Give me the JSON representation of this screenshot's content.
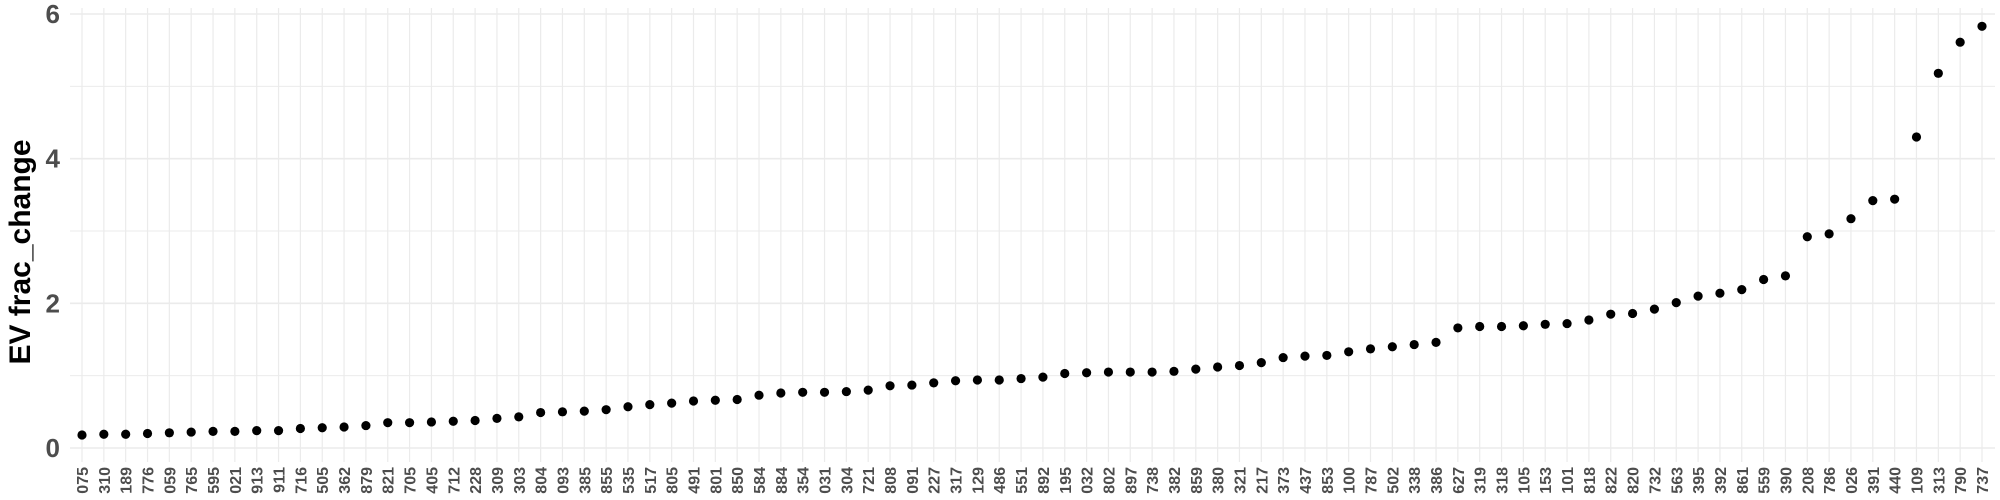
{
  "chart_data": {
    "type": "scatter",
    "title": "",
    "xlabel": "",
    "ylabel": "EV frac_change",
    "ylim": [
      0,
      6
    ],
    "yticks": [
      "0",
      "2",
      "4",
      "6"
    ],
    "grid": true,
    "legend": "none",
    "point_color": "#000000",
    "grid_color": "#ebebeb",
    "categories": [
      "075",
      "310",
      "189",
      "776",
      "059",
      "765",
      "595",
      "021",
      "913",
      "911",
      "716",
      "505",
      "362",
      "879",
      "821",
      "705",
      "405",
      "712",
      "228",
      "309",
      "303",
      "804",
      "093",
      "385",
      "855",
      "535",
      "517",
      "805",
      "491",
      "801",
      "850",
      "584",
      "884",
      "354",
      "031",
      "304",
      "721",
      "808",
      "091",
      "227",
      "317",
      "129",
      "486",
      "551",
      "892",
      "195",
      "032",
      "802",
      "897",
      "738",
      "382",
      "859",
      "380",
      "321",
      "217",
      "373",
      "437",
      "853",
      "100",
      "787",
      "502",
      "338",
      "386",
      "627",
      "319",
      "318",
      "105",
      "153",
      "101",
      "818",
      "822",
      "820",
      "732",
      "563",
      "395",
      "392",
      "861",
      "559",
      "390",
      "208",
      "786",
      "026",
      "391",
      "440",
      "109",
      "313",
      "790",
      "737"
    ],
    "values": [
      0.18,
      0.19,
      0.19,
      0.2,
      0.21,
      0.22,
      0.23,
      0.23,
      0.24,
      0.24,
      0.27,
      0.28,
      0.29,
      0.31,
      0.35,
      0.35,
      0.36,
      0.37,
      0.38,
      0.41,
      0.43,
      0.49,
      0.5,
      0.51,
      0.53,
      0.57,
      0.6,
      0.62,
      0.65,
      0.66,
      0.67,
      0.73,
      0.76,
      0.77,
      0.77,
      0.78,
      0.8,
      0.86,
      0.87,
      0.9,
      0.93,
      0.94,
      0.94,
      0.96,
      0.98,
      1.03,
      1.04,
      1.05,
      1.05,
      1.05,
      1.06,
      1.09,
      1.12,
      1.14,
      1.18,
      1.25,
      1.27,
      1.28,
      1.33,
      1.37,
      1.4,
      1.43,
      1.46,
      1.66,
      1.68,
      1.68,
      1.69,
      1.71,
      1.72,
      1.77,
      1.85,
      1.86,
      1.92,
      2.01,
      2.1,
      2.14,
      2.19,
      2.33,
      2.38,
      2.92,
      2.96,
      3.17,
      3.42,
      3.44,
      4.3,
      5.18,
      5.61,
      5.83
    ]
  }
}
